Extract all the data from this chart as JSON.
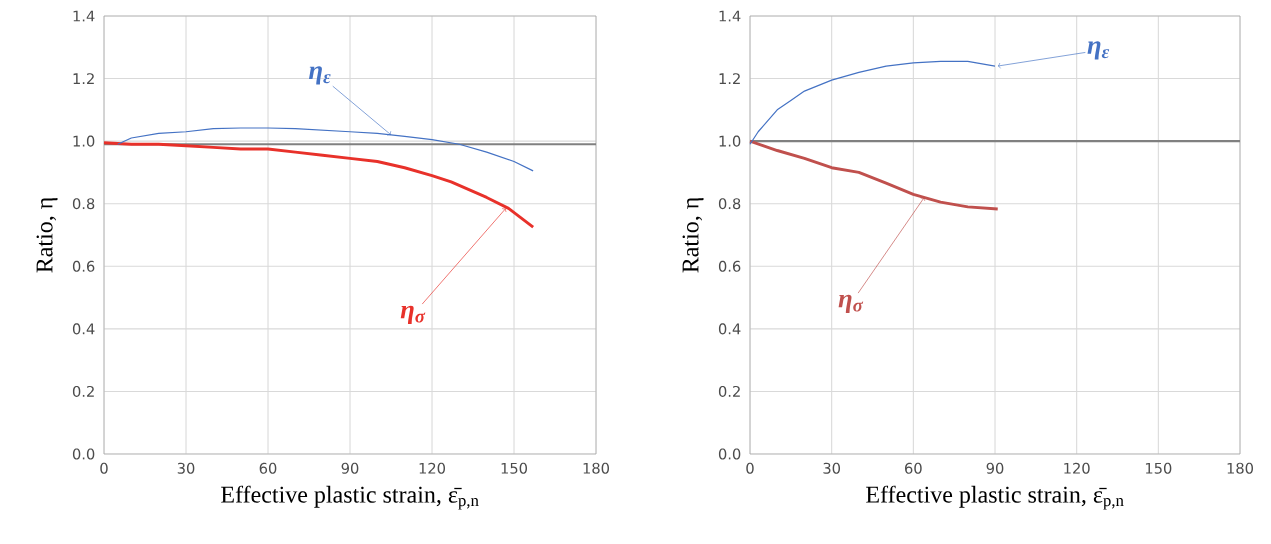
{
  "chart_data": [
    {
      "type": "line",
      "xlabel": "Effective plastic strain,  ε̄$_{p,n}$",
      "ylabel": "Ratio, η",
      "grid": true,
      "xlim": [
        0,
        180
      ],
      "xticks": [
        0,
        30,
        60,
        90,
        120,
        150,
        180
      ],
      "ylim": [
        0,
        1.4
      ],
      "yticks": [
        {
          "value": 0,
          "label": "0.0"
        },
        {
          "value": 0.2,
          "label": "0.2"
        },
        {
          "value": 0.4,
          "label": "0.4"
        },
        {
          "value": 0.6,
          "label": "0.6"
        },
        {
          "value": 0.8,
          "label": "0.8"
        },
        {
          "value": 1.0,
          "label": "1.0"
        },
        {
          "value": 1.2,
          "label": "1.2"
        },
        {
          "value": 1.4,
          "label": "1.4"
        }
      ],
      "series": [
        {
          "color": "#4472c4",
          "x": [
            5,
            10,
            20,
            30,
            40,
            50,
            60,
            70,
            80,
            90,
            100,
            110,
            120,
            130,
            140,
            150,
            157
          ],
          "values": [
            0.99,
            1.01,
            1.025,
            1.03,
            1.04,
            1.042,
            1.042,
            1.04,
            1.035,
            1.03,
            1.025,
            1.015,
            1.005,
            0.99,
            0.965,
            0.935,
            0.905
          ]
        },
        {
          "color": "#e8312a",
          "x": [
            0,
            10,
            20,
            30,
            40,
            50,
            60,
            70,
            80,
            90,
            100,
            110,
            120,
            127,
            140,
            148,
            157
          ],
          "values": [
            0.995,
            0.99,
            0.99,
            0.985,
            0.98,
            0.975,
            0.975,
            0.965,
            0.955,
            0.945,
            0.935,
            0.915,
            0.89,
            0.87,
            0.82,
            0.785,
            0.725
          ]
        }
      ],
      "ref_lines": [
        {
          "axis": "y",
          "value": 0.99,
          "color": "#808080"
        }
      ],
      "annotations": [
        {
          "text": "η$_{ε}$",
          "x": 105,
          "y": 1.02
        },
        {
          "text": "η$_{σ}$",
          "x": 147,
          "y": 0.785
        }
      ]
    },
    {
      "type": "line",
      "xlabel": "Effective plastic strain,  ε̄$_{p,n}$",
      "ylabel": "Ratio, η",
      "grid": true,
      "xlim": [
        0,
        180
      ],
      "xticks": [
        0,
        30,
        60,
        90,
        120,
        150,
        180
      ],
      "ylim": [
        0,
        1.4
      ],
      "yticks": [
        {
          "value": 0,
          "label": "0.0"
        },
        {
          "value": 0.2,
          "label": "0.2"
        },
        {
          "value": 0.4,
          "label": "0.4"
        },
        {
          "value": 0.6,
          "label": "0.6"
        },
        {
          "value": 0.8,
          "label": "0.8"
        },
        {
          "value": 1.0,
          "label": "1.0"
        },
        {
          "value": 1.2,
          "label": "1.2"
        },
        {
          "value": 1.4,
          "label": "1.4"
        }
      ],
      "series": [
        {
          "color": "#4472c4",
          "x": [
            0,
            3,
            10,
            15,
            20,
            30,
            40,
            50,
            60,
            70,
            80,
            90
          ],
          "values": [
            0.99,
            1.03,
            1.1,
            1.13,
            1.16,
            1.195,
            1.22,
            1.24,
            1.25,
            1.255,
            1.255,
            1.24
          ]
        },
        {
          "color": "#c0504d",
          "x": [
            0,
            5,
            10,
            20,
            30,
            40,
            50,
            60,
            70,
            80,
            91
          ],
          "values": [
            1.0,
            0.985,
            0.97,
            0.945,
            0.915,
            0.9,
            0.866,
            0.83,
            0.805,
            0.79,
            0.783
          ]
        }
      ],
      "ref_lines": [
        {
          "axis": "y",
          "value": 1.0,
          "color": "#808080"
        }
      ],
      "annotations": [
        {
          "text": "η$_{ε}$",
          "x": 91,
          "y": 1.24
        },
        {
          "text": "η$_{σ}$",
          "x": 64,
          "y": 0.82
        }
      ]
    }
  ]
}
